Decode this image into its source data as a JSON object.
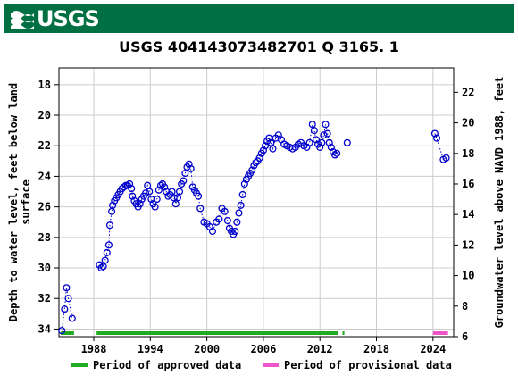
{
  "header": {
    "agency": "USGS"
  },
  "chart_data": {
    "type": "scatter",
    "title": "USGS 404143073482701 Q  3165. 1",
    "ylabel_left": [
      "Depth to water level, feet below land",
      "surface"
    ],
    "ylabel_right": "Groundwater level above NAVD 1988, feet",
    "xlim": [
      1984.3,
      2026.2
    ],
    "ylim_left": [
      34.5,
      16.9
    ],
    "ylim_right": [
      6.0,
      23.6
    ],
    "x_ticks": [
      1988,
      1994,
      2000,
      2006,
      2012,
      2018,
      2024
    ],
    "x_tick_labels": [
      "1988",
      "1994",
      "2000",
      "2006",
      "2012",
      "2018",
      "2024"
    ],
    "y_ticks_left": [
      18,
      20,
      22,
      24,
      26,
      28,
      30,
      32,
      34
    ],
    "y_tick_labels_left": [
      "18",
      "20",
      "22",
      "24",
      "26",
      "28",
      "30",
      "32",
      "34"
    ],
    "y_ticks_right": [
      6,
      8,
      10,
      12,
      14,
      16,
      18,
      20,
      22
    ],
    "y_tick_labels_right": [
      "6",
      "8",
      "10",
      "12",
      "14",
      "16",
      "18",
      "20",
      "22"
    ],
    "grid": true,
    "marker_color": "#0000cc",
    "series": [
      {
        "segment": 1,
        "points": [
          [
            1984.6,
            34.1
          ],
          [
            1984.9,
            32.7
          ],
          [
            1985.1,
            31.3
          ],
          [
            1985.3,
            32.0
          ],
          [
            1985.7,
            33.3
          ]
        ]
      },
      {
        "segment": 2,
        "points": [
          [
            1988.6,
            29.8
          ],
          [
            1988.8,
            30.0
          ],
          [
            1989.0,
            29.9
          ],
          [
            1989.2,
            29.5
          ],
          [
            1989.4,
            29.0
          ],
          [
            1989.6,
            28.5
          ],
          [
            1989.7,
            27.2
          ],
          [
            1989.9,
            26.3
          ],
          [
            1990.0,
            25.9
          ],
          [
            1990.2,
            25.6
          ],
          [
            1990.4,
            25.4
          ],
          [
            1990.6,
            25.2
          ],
          [
            1990.8,
            25.0
          ],
          [
            1991.0,
            24.8
          ],
          [
            1991.2,
            24.7
          ],
          [
            1991.4,
            24.6
          ],
          [
            1991.6,
            24.6
          ],
          [
            1991.8,
            24.5
          ],
          [
            1992.0,
            24.8
          ],
          [
            1992.1,
            25.3
          ],
          [
            1992.3,
            25.6
          ],
          [
            1992.5,
            25.8
          ],
          [
            1992.7,
            26.0
          ],
          [
            1992.9,
            25.8
          ],
          [
            1993.1,
            25.5
          ],
          [
            1993.3,
            25.3
          ],
          [
            1993.5,
            25.1
          ],
          [
            1993.7,
            24.6
          ],
          [
            1993.9,
            25.0
          ],
          [
            1994.1,
            25.5
          ],
          [
            1994.3,
            25.8
          ],
          [
            1994.5,
            26.0
          ],
          [
            1994.7,
            25.5
          ],
          [
            1994.9,
            24.9
          ],
          [
            1995.1,
            24.6
          ],
          [
            1995.3,
            24.5
          ],
          [
            1995.5,
            24.7
          ],
          [
            1995.7,
            25.0
          ],
          [
            1995.9,
            25.3
          ],
          [
            1996.1,
            25.2
          ],
          [
            1996.3,
            25.0
          ],
          [
            1996.5,
            25.4
          ],
          [
            1996.7,
            25.8
          ],
          [
            1996.9,
            25.4
          ],
          [
            1997.1,
            25.0
          ],
          [
            1997.3,
            24.5
          ],
          [
            1997.5,
            24.3
          ],
          [
            1997.7,
            23.8
          ],
          [
            1997.9,
            23.4
          ],
          [
            1998.1,
            23.2
          ],
          [
            1998.3,
            23.5
          ],
          [
            1998.5,
            24.7
          ],
          [
            1998.7,
            24.9
          ],
          [
            1998.9,
            25.1
          ],
          [
            1999.1,
            25.3
          ],
          [
            1999.3,
            26.1
          ],
          [
            1999.7,
            27.0
          ],
          [
            2000.0,
            27.1
          ],
          [
            2000.3,
            27.3
          ],
          [
            2000.6,
            27.6
          ],
          [
            2001.0,
            27.0
          ],
          [
            2001.3,
            26.8
          ],
          [
            2001.6,
            26.1
          ],
          [
            2001.9,
            26.3
          ],
          [
            2002.2,
            26.9
          ],
          [
            2002.4,
            27.4
          ],
          [
            2002.6,
            27.6
          ],
          [
            2002.8,
            27.8
          ],
          [
            2003.0,
            27.6
          ],
          [
            2003.2,
            27.0
          ],
          [
            2003.4,
            26.4
          ],
          [
            2003.6,
            25.9
          ],
          [
            2003.8,
            25.2
          ],
          [
            2004.0,
            24.5
          ],
          [
            2004.2,
            24.2
          ],
          [
            2004.4,
            24.0
          ],
          [
            2004.6,
            23.8
          ],
          [
            2004.8,
            23.6
          ],
          [
            2005.0,
            23.3
          ],
          [
            2005.2,
            23.1
          ],
          [
            2005.4,
            23.0
          ],
          [
            2005.6,
            22.8
          ],
          [
            2005.8,
            22.5
          ],
          [
            2006.0,
            22.3
          ],
          [
            2006.2,
            22.0
          ],
          [
            2006.4,
            21.7
          ],
          [
            2006.6,
            21.5
          ],
          [
            2006.8,
            21.8
          ],
          [
            2007.0,
            22.2
          ],
          [
            2007.3,
            21.5
          ],
          [
            2007.6,
            21.3
          ],
          [
            2007.9,
            21.6
          ],
          [
            2008.2,
            21.9
          ],
          [
            2008.5,
            22.0
          ],
          [
            2008.8,
            22.1
          ],
          [
            2009.1,
            22.2
          ],
          [
            2009.4,
            22.1
          ],
          [
            2009.7,
            21.9
          ],
          [
            2010.0,
            21.8
          ],
          [
            2010.3,
            22.0
          ],
          [
            2010.6,
            22.1
          ],
          [
            2010.9,
            21.8
          ],
          [
            2011.2,
            20.6
          ],
          [
            2011.4,
            21.0
          ],
          [
            2011.6,
            21.6
          ],
          [
            2011.8,
            21.9
          ],
          [
            2012.0,
            22.1
          ],
          [
            2012.2,
            21.8
          ],
          [
            2012.4,
            21.3
          ],
          [
            2012.6,
            20.6
          ],
          [
            2012.8,
            21.2
          ],
          [
            2013.0,
            21.8
          ],
          [
            2013.2,
            22.1
          ],
          [
            2013.4,
            22.4
          ],
          [
            2013.6,
            22.6
          ],
          [
            2013.8,
            22.5
          ]
        ]
      },
      {
        "segment": 3,
        "points": [
          [
            2014.9,
            21.8
          ]
        ]
      },
      {
        "segment": 4,
        "points": [
          [
            2024.2,
            21.2
          ],
          [
            2024.4,
            21.5
          ],
          [
            2025.1,
            22.9
          ],
          [
            2025.4,
            22.8
          ]
        ]
      }
    ],
    "approved_periods": [
      [
        1984.5,
        1985.9
      ],
      [
        1988.3,
        2013.9
      ],
      [
        2014.4,
        2014.6
      ]
    ],
    "provisional_periods": [
      [
        2024.0,
        2025.6
      ]
    ],
    "approved_color": "#22aa22",
    "provisional_color": "#ee55cc",
    "legend": {
      "placement": "bottom",
      "approved_label": "Period of approved data",
      "provisional_label": "Period of provisional data"
    }
  }
}
